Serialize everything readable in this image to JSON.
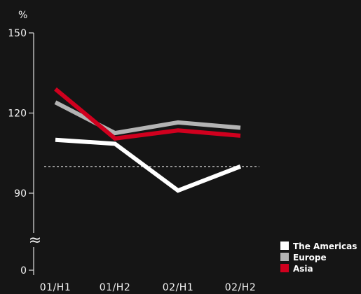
{
  "chart_data": {
    "type": "line",
    "ylabel": "%",
    "x": [
      "01/H1",
      "01/H2",
      "02/H1",
      "02/H2"
    ],
    "yticks": [
      0,
      90,
      120,
      150
    ],
    "axis_break_symbol": "≈",
    "reference_line": 100,
    "grid": false,
    "legend_position": "bottom-right",
    "series": [
      {
        "name": "The Americas",
        "color": "#ffffff",
        "values": [
          110,
          108.5,
          91,
          100
        ]
      },
      {
        "name": "Europe",
        "color": "#b3b3b3",
        "values": [
          124,
          112.5,
          116.5,
          114.5
        ]
      },
      {
        "name": "Asia",
        "color": "#d0001e",
        "values": [
          129,
          110.5,
          113.5,
          111.5
        ]
      }
    ]
  }
}
